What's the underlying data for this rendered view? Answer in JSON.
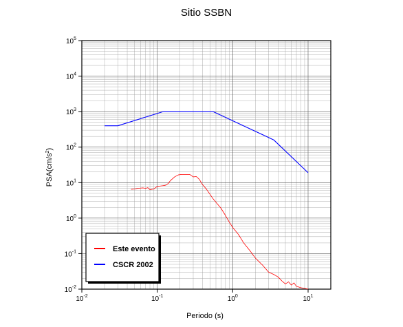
{
  "chart_data": {
    "type": "line",
    "title": "Sitio SSBN",
    "xlabel": "Periodo (s)",
    "ylabel": {
      "prefix": "PSA(cm/s",
      "sup": "2",
      "suffix": ")"
    },
    "x_scale": "log",
    "y_scale": "log",
    "xlim": [
      0.01,
      20
    ],
    "ylim": [
      0.01,
      100000
    ],
    "x_ticks": [
      {
        "base": "10",
        "exp": "-2"
      },
      {
        "base": "10",
        "exp": "-1"
      },
      {
        "base": "10",
        "exp": "0"
      },
      {
        "base": "10",
        "exp": "1"
      }
    ],
    "y_ticks": [
      {
        "base": "10",
        "exp": "-2"
      },
      {
        "base": "10",
        "exp": "-1"
      },
      {
        "base": "10",
        "exp": "0"
      },
      {
        "base": "10",
        "exp": "1"
      },
      {
        "base": "10",
        "exp": "2"
      },
      {
        "base": "10",
        "exp": "3"
      },
      {
        "base": "10",
        "exp": "4"
      },
      {
        "base": "10",
        "exp": "5"
      }
    ],
    "grid": true,
    "legend_position": "bottom-left",
    "series": [
      {
        "name": "Este evento",
        "color": "#ff0000",
        "x": [
          0.045,
          0.05,
          0.055,
          0.06,
          0.065,
          0.07,
          0.075,
          0.08,
          0.085,
          0.09,
          0.1,
          0.11,
          0.12,
          0.13,
          0.14,
          0.15,
          0.17,
          0.19,
          0.21,
          0.24,
          0.27,
          0.3,
          0.33,
          0.36,
          0.4,
          0.45,
          0.5,
          0.55,
          0.6,
          0.7,
          0.8,
          0.9,
          1.0,
          1.2,
          1.4,
          1.7,
          2.0,
          2.5,
          3.0,
          3.5,
          4.0,
          4.5,
          5.0,
          5.5,
          6.0,
          6.5,
          7.0,
          8.0,
          9.0,
          10.0
        ],
        "y": [
          6.5,
          6.6,
          6.9,
          7.0,
          7.1,
          6.9,
          7.2,
          6.3,
          6.5,
          6.6,
          7.8,
          8.0,
          8.2,
          8.5,
          9.5,
          11.5,
          14.5,
          16.5,
          17.0,
          17.0,
          17.0,
          14.5,
          14.8,
          12.5,
          8.7,
          6.5,
          4.7,
          3.5,
          2.8,
          1.9,
          1.2,
          0.78,
          0.55,
          0.34,
          0.2,
          0.12,
          0.075,
          0.047,
          0.03,
          0.026,
          0.022,
          0.017,
          0.014,
          0.016,
          0.013,
          0.015,
          0.012,
          0.011,
          0.0105,
          0.01
        ]
      },
      {
        "name": "CSCR 2002",
        "color": "#0000ff",
        "x": [
          0.02,
          0.03,
          0.12,
          0.55,
          3.5,
          10.0
        ],
        "y": [
          400,
          400,
          1000,
          1000,
          160,
          19
        ]
      }
    ]
  }
}
